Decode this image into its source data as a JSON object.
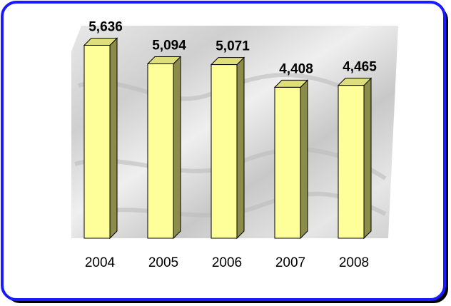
{
  "chart_data": {
    "type": "bar",
    "categories": [
      "2004",
      "2005",
      "2006",
      "2007",
      "2008"
    ],
    "values": [
      5636,
      5094,
      5071,
      4408,
      4465
    ],
    "value_labels": [
      "5,636",
      "5,094",
      "5,071",
      "4,408",
      "4,465"
    ],
    "ylim": [
      0,
      6000
    ],
    "grid": false,
    "legend": "none",
    "bar_style": "3d"
  },
  "colors": {
    "frame_border": "#1a1aff",
    "bar_front": "#ffff99",
    "bar_top": "#dede7a",
    "bar_side": "#8c8c4a",
    "bar_outline": "#000000",
    "plot_background": "#d9d9d9"
  }
}
